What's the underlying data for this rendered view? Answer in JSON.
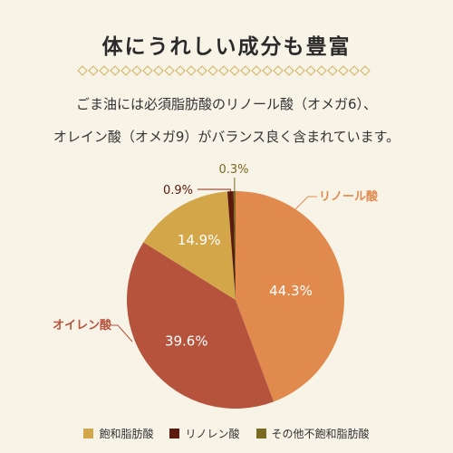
{
  "title": "体にうれしい成分も豊富",
  "subtitle_lines": [
    "ごま油には必須脂肪酸のリノール酸（オメガ6）、",
    "オレイン酸（オメガ9）がバランス良く含まれています。"
  ],
  "colors": {
    "background": "#f8f3e7",
    "divider": "#d4b161"
  },
  "chart_data": {
    "type": "pie",
    "title": "",
    "slices": [
      {
        "label": "リノール酸",
        "value": 44.3,
        "display": "44.3%",
        "color": "#e08a4e"
      },
      {
        "label": "オイレン酸",
        "value": 39.6,
        "display": "39.6%",
        "color": "#b5533c"
      },
      {
        "label": "飽和脂肪酸",
        "value": 14.9,
        "display": "14.9%",
        "color": "#d4a64a"
      },
      {
        "label": "リノレン酸",
        "value": 0.9,
        "display": "0.9%",
        "color": "#5a1a0e"
      },
      {
        "label": "その他不飽和脂肪酸",
        "value": 0.3,
        "display": "0.3%",
        "color": "#7a6a22"
      }
    ],
    "legend": [
      "飽和脂肪酸",
      "リノレン酸",
      "その他不飽和脂肪酸"
    ],
    "legend_placement": "bottom"
  }
}
